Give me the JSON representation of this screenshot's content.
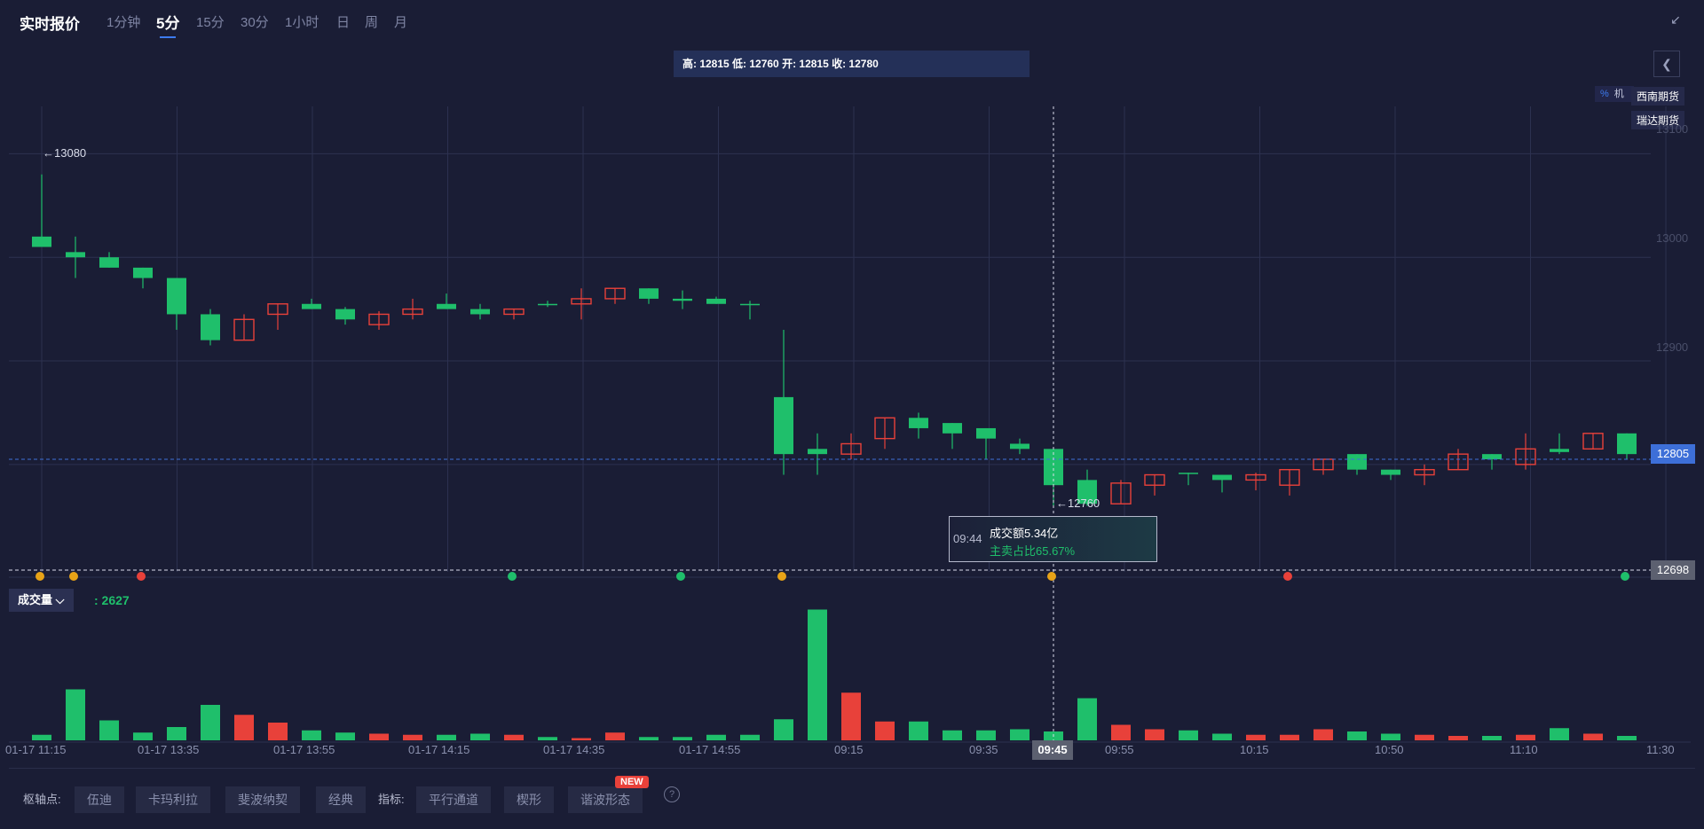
{
  "header": {
    "title": "实时报价",
    "tabs": [
      {
        "label": "1分钟",
        "active": false
      },
      {
        "label": "5分",
        "active": true
      },
      {
        "label": "15分",
        "active": false
      },
      {
        "label": "30分",
        "active": false
      },
      {
        "label": "1小时",
        "active": false
      },
      {
        "label": "日",
        "active": false
      },
      {
        "label": "周",
        "active": false
      },
      {
        "label": "月",
        "active": false
      }
    ]
  },
  "ohlc_bar": "高: 12815 低: 12760 开: 12815 收: 12780",
  "brokers": [
    "西南期货",
    "瑞达期货"
  ],
  "percent_toggle": {
    "pct": "%",
    "other": "机"
  },
  "price_axis": {
    "ticks": [
      "13100",
      "13000",
      "12900"
    ],
    "current_price": "12805",
    "low_line_price": "12698"
  },
  "annotations": {
    "high_label": "13080",
    "low_label": "12760"
  },
  "tooltip": {
    "time": "09:44",
    "amount": "成交额5.34亿",
    "buy_ratio": "主卖占比65.67%"
  },
  "volume": {
    "label": "成交量",
    "value": ": 2627"
  },
  "x_axis": {
    "labels": [
      "01-17 11:15",
      "01-17 13:35",
      "01-17 13:55",
      "01-17 14:15",
      "01-17 14:35",
      "01-17 14:55",
      "09:15",
      "09:35",
      "09:55",
      "10:15",
      "10:50",
      "11:10",
      "11:30"
    ],
    "crosshair_time": "09:45"
  },
  "footer": {
    "pivot_label": "枢轴点:",
    "pivot_buttons": [
      "伍迪",
      "卡玛利拉",
      "斐波纳契",
      "经典"
    ],
    "indicator_label": "指标:",
    "indicator_buttons": [
      "平行通道",
      "楔形",
      "谐波形态"
    ],
    "new_badge": "NEW",
    "help": "?"
  },
  "colors": {
    "up": "#e8413a",
    "down": "#1fbf6b",
    "accent": "#3d7bf0"
  },
  "chart_data": {
    "type": "candlestick",
    "ylim": [
      12698,
      13120
    ],
    "candles": [
      {
        "o": 13020,
        "h": 13080,
        "l": 13010,
        "c": 13010
      },
      {
        "o": 13005,
        "h": 13020,
        "l": 12980,
        "c": 13000
      },
      {
        "o": 13000,
        "h": 13005,
        "l": 12990,
        "c": 12990
      },
      {
        "o": 12990,
        "h": 12990,
        "l": 12970,
        "c": 12980
      },
      {
        "o": 12980,
        "h": 12980,
        "l": 12930,
        "c": 12945
      },
      {
        "o": 12945,
        "h": 12950,
        "l": 12915,
        "c": 12920
      },
      {
        "o": 12920,
        "h": 12945,
        "l": 12920,
        "c": 12940
      },
      {
        "o": 12945,
        "h": 12955,
        "l": 12930,
        "c": 12955
      },
      {
        "o": 12955,
        "h": 12960,
        "l": 12950,
        "c": 12950
      },
      {
        "o": 12950,
        "h": 12952,
        "l": 12935,
        "c": 12940
      },
      {
        "o": 12935,
        "h": 12948,
        "l": 12930,
        "c": 12945
      },
      {
        "o": 12945,
        "h": 12960,
        "l": 12940,
        "c": 12950
      },
      {
        "o": 12955,
        "h": 12965,
        "l": 12950,
        "c": 12950
      },
      {
        "o": 12950,
        "h": 12955,
        "l": 12940,
        "c": 12945
      },
      {
        "o": 12945,
        "h": 12950,
        "l": 12940,
        "c": 12950
      },
      {
        "o": 12955,
        "h": 12958,
        "l": 12952,
        "c": 12955
      },
      {
        "o": 12955,
        "h": 12970,
        "l": 12940,
        "c": 12960
      },
      {
        "o": 12960,
        "h": 12970,
        "l": 12955,
        "c": 12970
      },
      {
        "o": 12970,
        "h": 12970,
        "l": 12955,
        "c": 12960
      },
      {
        "o": 12960,
        "h": 12968,
        "l": 12950,
        "c": 12958
      },
      {
        "o": 12960,
        "h": 12962,
        "l": 12955,
        "c": 12955
      },
      {
        "o": 12955,
        "h": 12958,
        "l": 12940,
        "c": 12955
      },
      {
        "o": 12865,
        "h": 12930,
        "l": 12790,
        "c": 12810
      },
      {
        "o": 12815,
        "h": 12830,
        "l": 12790,
        "c": 12810
      },
      {
        "o": 12810,
        "h": 12830,
        "l": 12805,
        "c": 12820
      },
      {
        "o": 12825,
        "h": 12845,
        "l": 12815,
        "c": 12845
      },
      {
        "o": 12845,
        "h": 12850,
        "l": 12825,
        "c": 12835
      },
      {
        "o": 12840,
        "h": 12840,
        "l": 12815,
        "c": 12830
      },
      {
        "o": 12835,
        "h": 12835,
        "l": 12805,
        "c": 12825
      },
      {
        "o": 12820,
        "h": 12825,
        "l": 12810,
        "c": 12815
      },
      {
        "o": 12815,
        "h": 12815,
        "l": 12760,
        "c": 12780
      },
      {
        "o": 12785,
        "h": 12795,
        "l": 12760,
        "c": 12762
      },
      {
        "o": 12762,
        "h": 12785,
        "l": 12762,
        "c": 12782
      },
      {
        "o": 12780,
        "h": 12790,
        "l": 12770,
        "c": 12790
      },
      {
        "o": 12792,
        "h": 12792,
        "l": 12780,
        "c": 12792
      },
      {
        "o": 12790,
        "h": 12790,
        "l": 12773,
        "c": 12785
      },
      {
        "o": 12785,
        "h": 12792,
        "l": 12775,
        "c": 12790
      },
      {
        "o": 12780,
        "h": 12795,
        "l": 12770,
        "c": 12795
      },
      {
        "o": 12795,
        "h": 12805,
        "l": 12790,
        "c": 12805
      },
      {
        "o": 12810,
        "h": 12810,
        "l": 12790,
        "c": 12795
      },
      {
        "o": 12795,
        "h": 12795,
        "l": 12785,
        "c": 12790
      },
      {
        "o": 12790,
        "h": 12800,
        "l": 12780,
        "c": 12795
      },
      {
        "o": 12795,
        "h": 12815,
        "l": 12795,
        "c": 12810
      },
      {
        "o": 12810,
        "h": 12810,
        "l": 12795,
        "c": 12805
      },
      {
        "o": 12800,
        "h": 12830,
        "l": 12795,
        "c": 12815
      },
      {
        "o": 12815,
        "h": 12830,
        "l": 12810,
        "c": 12812
      },
      {
        "o": 12815,
        "h": 12830,
        "l": 12815,
        "c": 12830
      },
      {
        "o": 12830,
        "h": 12830,
        "l": 12805,
        "c": 12810
      }
    ],
    "volume_max": 12000,
    "volumes": [
      500,
      4600,
      1800,
      700,
      1200,
      3200,
      2300,
      1600,
      900,
      700,
      600,
      500,
      500,
      600,
      500,
      300,
      200,
      700,
      300,
      300,
      500,
      500,
      1900,
      11800,
      4300,
      1700,
      1700,
      900,
      900,
      1000,
      800,
      3800,
      1400,
      1000,
      900,
      600,
      500,
      500,
      1000,
      800,
      600,
      500,
      400,
      400,
      500,
      1100,
      600,
      400
    ]
  }
}
